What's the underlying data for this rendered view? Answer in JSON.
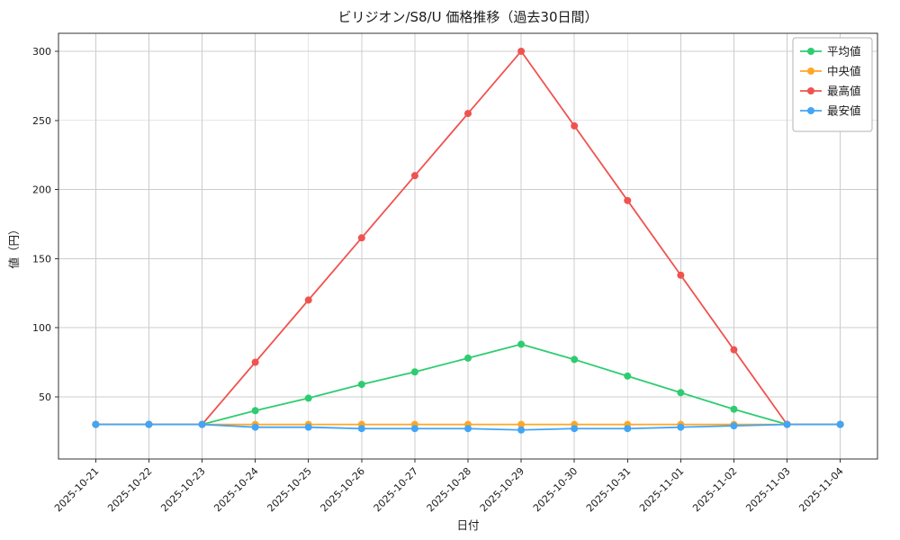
{
  "figure": {
    "background": "#ffffff",
    "axis_border_color": "#333333",
    "grid_color": "#cccccc",
    "text_color": "#1a1a1a"
  },
  "chart_data": {
    "type": "line",
    "title": "ビリジオン/S8/U 価格推移（過去30日間）",
    "xlabel": "日付",
    "ylabel": "値（円）",
    "x": [
      "2025-10-21",
      "2025-10-22",
      "2025-10-23",
      "2025-10-24",
      "2025-10-25",
      "2025-10-26",
      "2025-10-27",
      "2025-10-28",
      "2025-10-29",
      "2025-10-30",
      "2025-10-31",
      "2025-11-01",
      "2025-11-02",
      "2025-11-03",
      "2025-11-04"
    ],
    "series": [
      {
        "name": "平均値",
        "color": "#2ecc71",
        "values": [
          30,
          30,
          30,
          40,
          49,
          59,
          68,
          78,
          88,
          77,
          65,
          53,
          41,
          30,
          30
        ]
      },
      {
        "name": "中央値",
        "color": "#ffa726",
        "values": [
          30,
          30,
          30,
          30,
          30,
          30,
          30,
          30,
          30,
          30,
          30,
          30,
          30,
          30,
          30
        ]
      },
      {
        "name": "最高値",
        "color": "#ef5350",
        "values": [
          30,
          30,
          30,
          75,
          120,
          165,
          210,
          255,
          300,
          246,
          192,
          138,
          84,
          30,
          30
        ]
      },
      {
        "name": "最安値",
        "color": "#42a5f5",
        "values": [
          30,
          30,
          30,
          28,
          28,
          27,
          27,
          27,
          26,
          27,
          27,
          28,
          29,
          30,
          30
        ]
      }
    ],
    "yticks": [
      50,
      100,
      150,
      200,
      250,
      300
    ],
    "ylim": [
      5,
      313
    ],
    "grid": true,
    "legend_position": "upper right"
  }
}
